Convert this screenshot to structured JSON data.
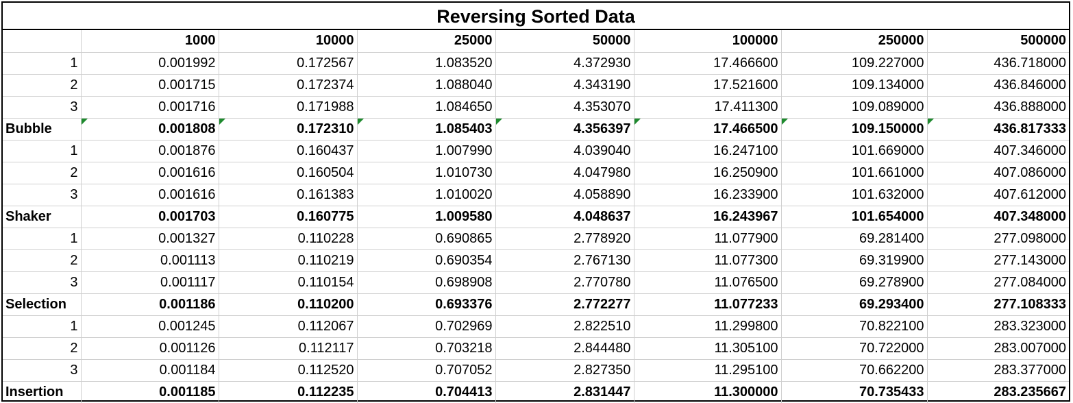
{
  "title": "Reversing Sorted Data",
  "columns": [
    "",
    "1000",
    "10000",
    "25000",
    "50000",
    "100000",
    "250000",
    "500000"
  ],
  "groups": [
    {
      "name": "Bubble",
      "runs": [
        {
          "label": "1",
          "values": [
            "0.001992",
            "0.172567",
            "1.083520",
            "4.372930",
            "17.466600",
            "109.227000",
            "436.718000"
          ]
        },
        {
          "label": "2",
          "values": [
            "0.001715",
            "0.172374",
            "1.088040",
            "4.343190",
            "17.521600",
            "109.134000",
            "436.846000"
          ]
        },
        {
          "label": "3",
          "values": [
            "0.001716",
            "0.171988",
            "1.084650",
            "4.353070",
            "17.411300",
            "109.089000",
            "436.888000"
          ]
        }
      ],
      "average": [
        "0.001808",
        "0.172310",
        "1.085403",
        "4.356397",
        "17.466500",
        "109.150000",
        "436.817333"
      ]
    },
    {
      "name": "Shaker",
      "runs": [
        {
          "label": "1",
          "values": [
            "0.001876",
            "0.160437",
            "1.007990",
            "4.039040",
            "16.247100",
            "101.669000",
            "407.346000"
          ]
        },
        {
          "label": "2",
          "values": [
            "0.001616",
            "0.160504",
            "1.010730",
            "4.047980",
            "16.250900",
            "101.661000",
            "407.086000"
          ]
        },
        {
          "label": "3",
          "values": [
            "0.001616",
            "0.161383",
            "1.010020",
            "4.058890",
            "16.233900",
            "101.632000",
            "407.612000"
          ]
        }
      ],
      "average": [
        "0.001703",
        "0.160775",
        "1.009580",
        "4.048637",
        "16.243967",
        "101.654000",
        "407.348000"
      ]
    },
    {
      "name": "Selection",
      "runs": [
        {
          "label": "1",
          "values": [
            "0.001327",
            "0.110228",
            "0.690865",
            "2.778920",
            "11.077900",
            "69.281400",
            "277.098000"
          ]
        },
        {
          "label": "2",
          "values": [
            "0.001113",
            "0.110219",
            "0.690354",
            "2.767130",
            "11.077300",
            "69.319900",
            "277.143000"
          ]
        },
        {
          "label": "3",
          "values": [
            "0.001117",
            "0.110154",
            "0.698908",
            "2.770780",
            "11.076500",
            "69.278900",
            "277.084000"
          ]
        }
      ],
      "average": [
        "0.001186",
        "0.110200",
        "0.693376",
        "2.772277",
        "11.077233",
        "69.293400",
        "277.108333"
      ]
    },
    {
      "name": "Insertion",
      "runs": [
        {
          "label": "1",
          "values": [
            "0.001245",
            "0.112067",
            "0.702969",
            "2.822510",
            "11.299800",
            "70.822100",
            "283.323000"
          ]
        },
        {
          "label": "2",
          "values": [
            "0.001126",
            "0.112117",
            "0.703218",
            "2.844480",
            "11.305100",
            "70.722000",
            "283.007000"
          ]
        },
        {
          "label": "3",
          "values": [
            "0.001184",
            "0.112520",
            "0.707052",
            "2.827350",
            "11.295100",
            "70.662200",
            "283.377000"
          ]
        }
      ],
      "average": [
        "0.001185",
        "0.112235",
        "0.704413",
        "2.831447",
        "11.300000",
        "70.735433",
        "283.235667"
      ]
    }
  ],
  "colors": {
    "flag": "#1e8a2e",
    "gridline": "#cfcfcf",
    "border": "#000000"
  }
}
